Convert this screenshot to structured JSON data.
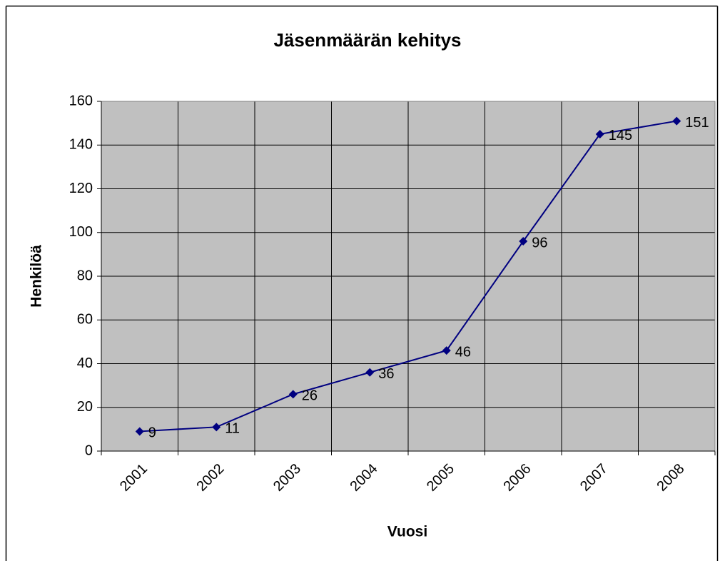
{
  "chart_data": {
    "type": "line",
    "title": "Jäsenmäärän kehitys",
    "x_label": "Vuosi",
    "y_label": "Henkilöä",
    "categories": [
      "2001",
      "2002",
      "2003",
      "2004",
      "2005",
      "2006",
      "2007",
      "2008"
    ],
    "values": [
      9,
      11,
      26,
      36,
      46,
      96,
      145,
      151
    ],
    "color": "#000080",
    "ylim": [
      0,
      160
    ],
    "yticks": [
      0,
      20,
      40,
      60,
      80,
      100,
      120,
      140,
      160
    ],
    "grid": true
  }
}
